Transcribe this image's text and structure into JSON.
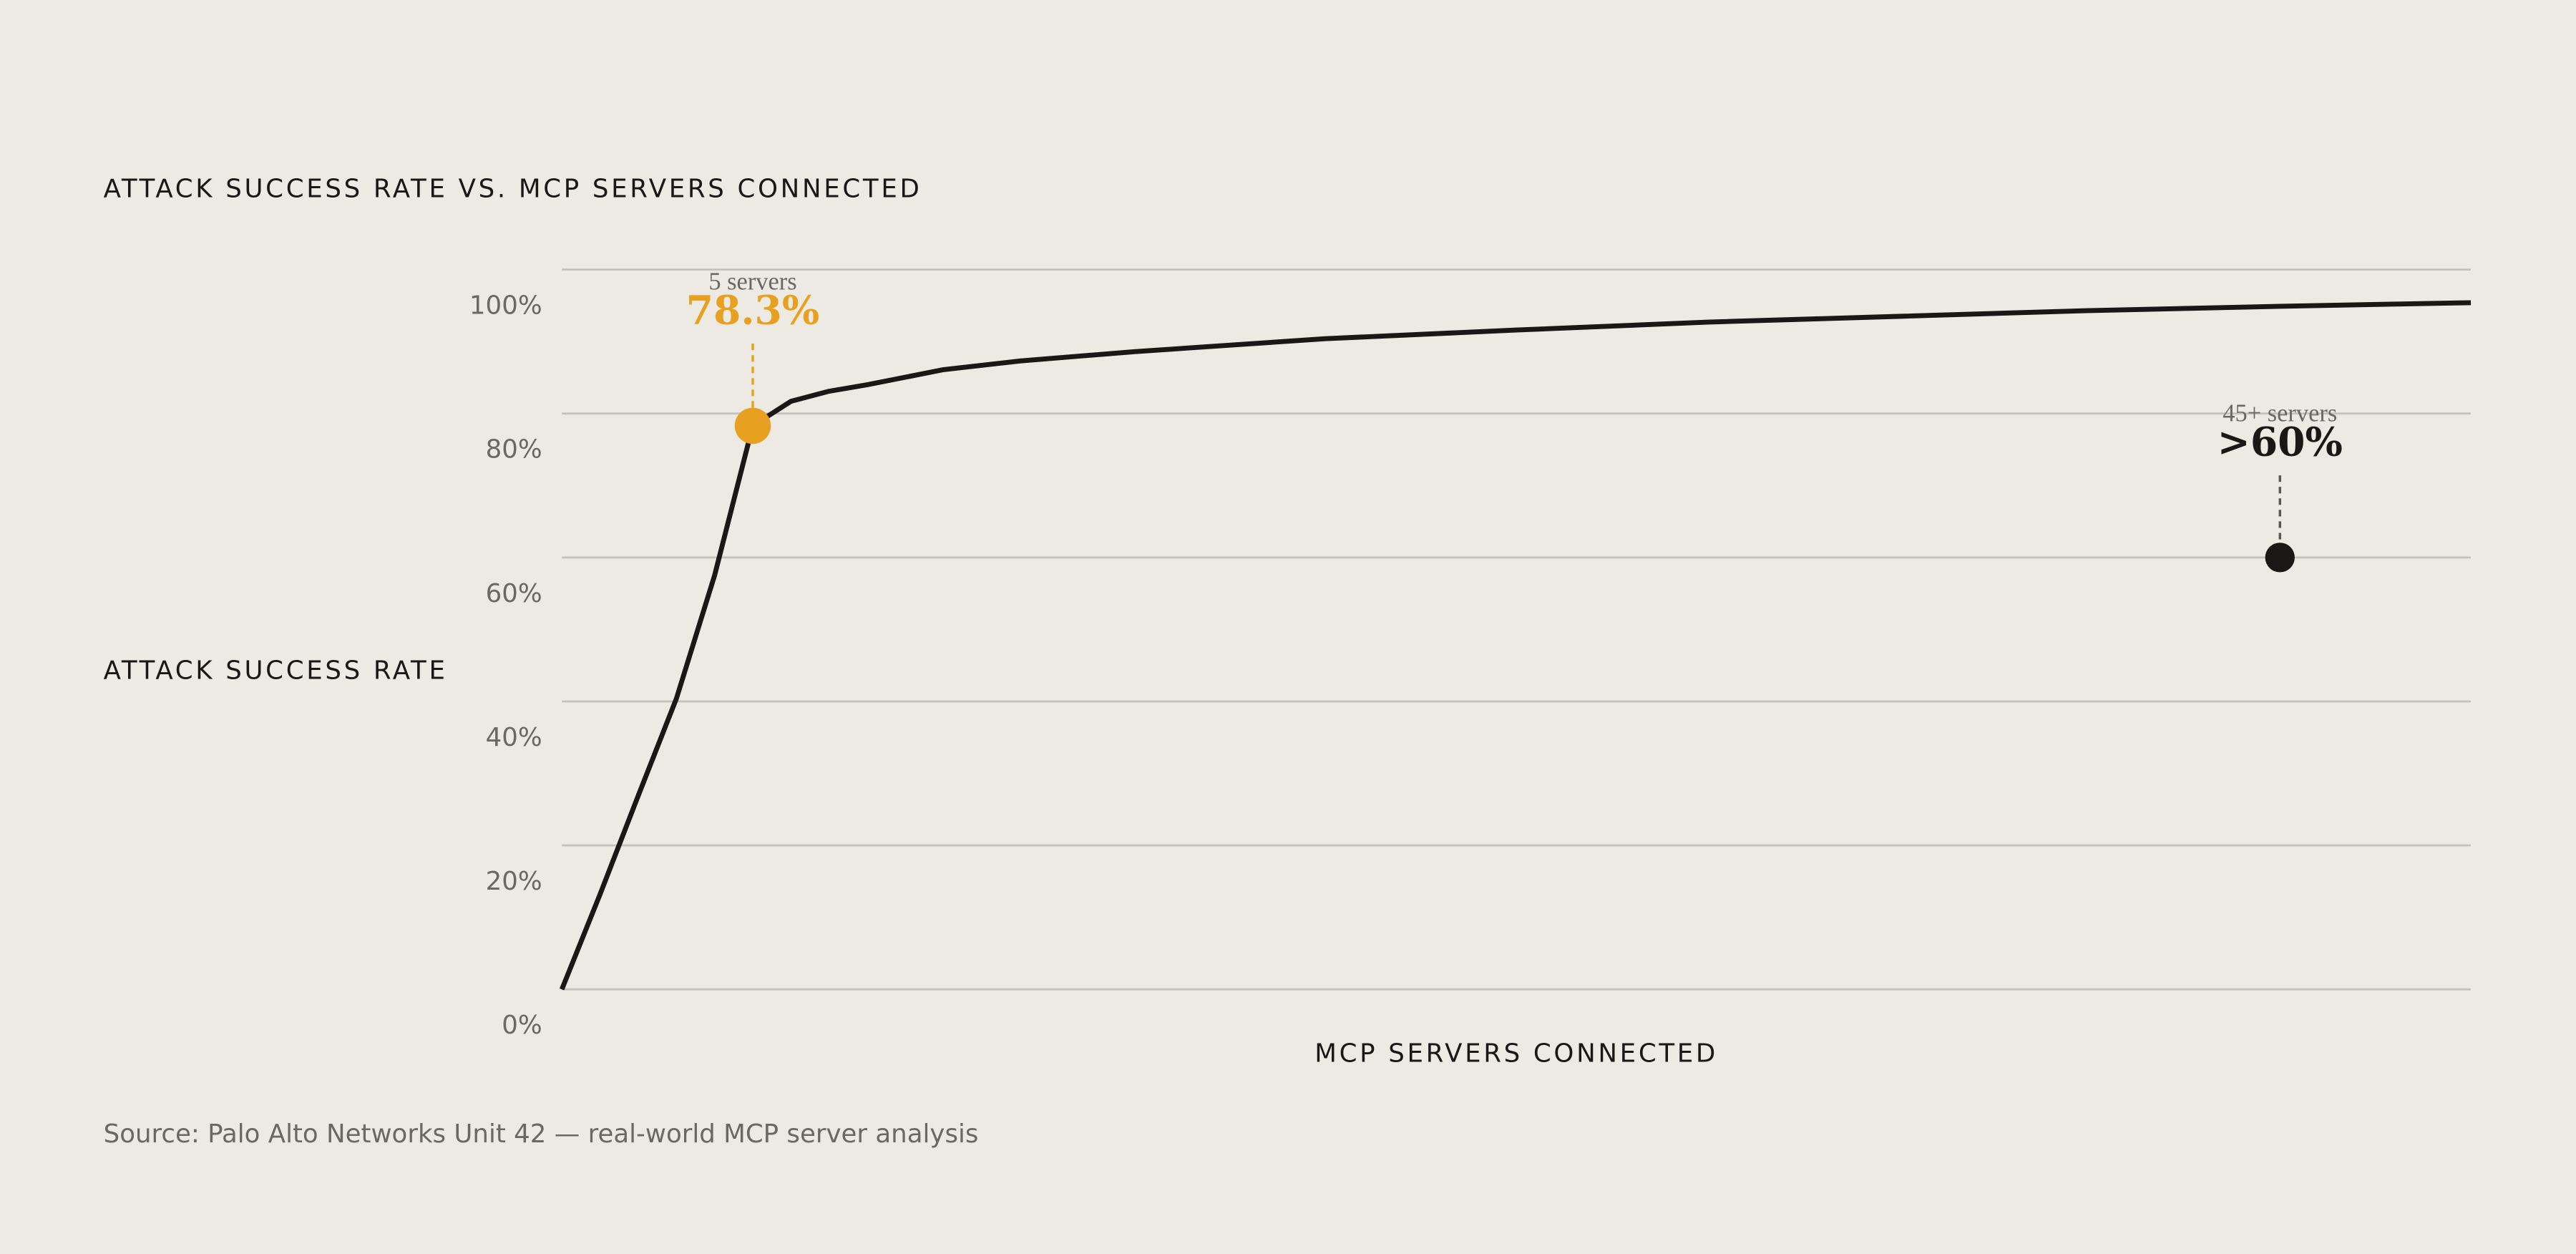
{
  "chart_data": {
    "type": "line",
    "title": "ATTACK SUCCESS RATE VS. MCP SERVERS CONNECTED",
    "y_label": "ATTACK SUCCESS RATE",
    "x_label": "MCP SERVERS CONNECTED",
    "source": "Source: Palo Alto Networks Unit 42 — real-world MCP server analysis",
    "x": [
      0,
      1,
      2,
      3,
      4,
      5,
      6,
      7,
      8,
      10,
      12,
      15,
      20,
      25,
      30,
      35,
      40,
      45,
      50
    ],
    "series": [
      {
        "color": "#1a1816",
        "values": [
          0,
          13.2,
          26.9,
          40.4,
          57.5,
          78.3,
          81.7,
          83.1,
          84.0,
          86.1,
          87.3,
          88.6,
          90.4,
          91.6,
          92.7,
          93.5,
          94.3,
          94.9,
          95.4
        ]
      }
    ],
    "xlim": [
      0,
      50
    ],
    "ylim": [
      0,
      100
    ],
    "yticks": [
      {
        "value": 0,
        "label": "0%"
      },
      {
        "value": 20,
        "label": "20%"
      },
      {
        "value": 40,
        "label": "40%"
      },
      {
        "value": 60,
        "label": "60%"
      },
      {
        "value": 80,
        "label": "80%"
      },
      {
        "value": 100,
        "label": "100%"
      }
    ],
    "grid": true,
    "highlights": [
      {
        "label": "5 servers",
        "x": 5,
        "value": 78.3,
        "value_label": "78.3%",
        "color": "#e8a020"
      },
      {
        "label": "45+ servers",
        "x": 45,
        "value": 60,
        "value_label": ">60%",
        "color": "#1a1816"
      }
    ]
  }
}
